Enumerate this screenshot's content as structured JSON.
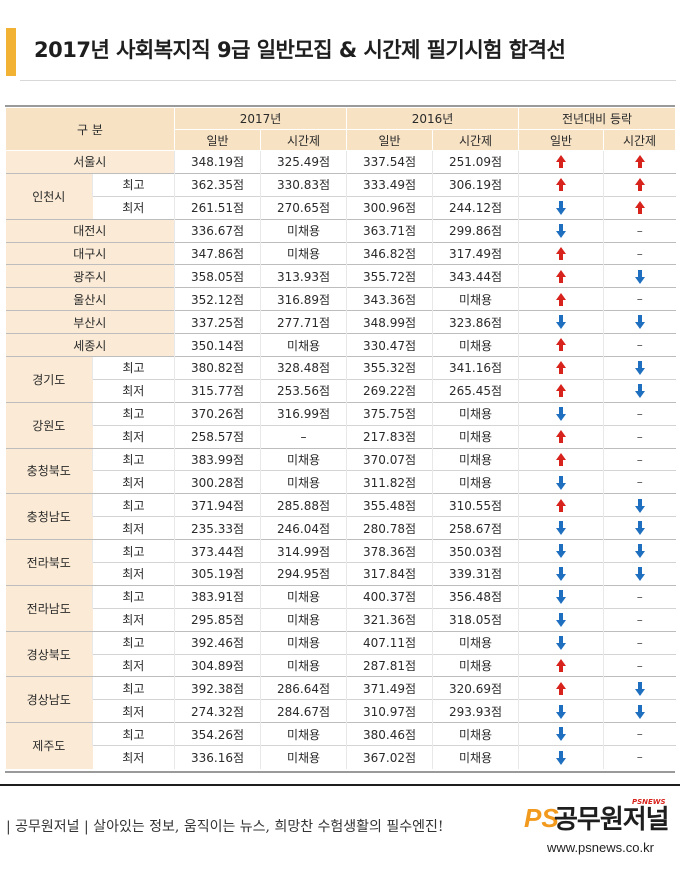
{
  "title": "2017년 사회복지직 9급 일반모집 & 시간제 필기시험 합격선",
  "header": {
    "category": "구 분",
    "year2017": "2017년",
    "year2016": "2016년",
    "change": "전년대비 등락",
    "general": "일반",
    "parttime": "시간제"
  },
  "rows": [
    {
      "region": "서울시",
      "sub": "",
      "g17": "348.19점",
      "p17": "325.49점",
      "g16": "337.54점",
      "p16": "251.09점",
      "cg": "up",
      "cp": "up"
    },
    {
      "region": "인천시",
      "sub": "최고",
      "g17": "362.35점",
      "p17": "330.83점",
      "g16": "333.49점",
      "p16": "306.19점",
      "cg": "up",
      "cp": "up"
    },
    {
      "region": "",
      "sub": "최저",
      "g17": "261.51점",
      "p17": "270.65점",
      "g16": "300.96점",
      "p16": "244.12점",
      "cg": "down",
      "cp": "up"
    },
    {
      "region": "대전시",
      "sub": "",
      "g17": "336.67점",
      "p17": "미채용",
      "g16": "363.71점",
      "p16": "299.86점",
      "cg": "down",
      "cp": "–"
    },
    {
      "region": "대구시",
      "sub": "",
      "g17": "347.86점",
      "p17": "미채용",
      "g16": "346.82점",
      "p16": "317.49점",
      "cg": "up",
      "cp": "–"
    },
    {
      "region": "광주시",
      "sub": "",
      "g17": "358.05점",
      "p17": "313.93점",
      "g16": "355.72점",
      "p16": "343.44점",
      "cg": "up",
      "cp": "down"
    },
    {
      "region": "울산시",
      "sub": "",
      "g17": "352.12점",
      "p17": "316.89점",
      "g16": "343.36점",
      "p16": "미채용",
      "cg": "up",
      "cp": "–"
    },
    {
      "region": "부산시",
      "sub": "",
      "g17": "337.25점",
      "p17": "277.71점",
      "g16": "348.99점",
      "p16": "323.86점",
      "cg": "down",
      "cp": "down"
    },
    {
      "region": "세종시",
      "sub": "",
      "g17": "350.14점",
      "p17": "미채용",
      "g16": "330.47점",
      "p16": "미채용",
      "cg": "up",
      "cp": "–"
    },
    {
      "region": "경기도",
      "sub": "최고",
      "g17": "380.82점",
      "p17": "328.48점",
      "g16": "355.32점",
      "p16": "341.16점",
      "cg": "up",
      "cp": "down"
    },
    {
      "region": "",
      "sub": "최저",
      "g17": "315.77점",
      "p17": "253.56점",
      "g16": "269.22점",
      "p16": "265.45점",
      "cg": "up",
      "cp": "down"
    },
    {
      "region": "강원도",
      "sub": "최고",
      "g17": "370.26점",
      "p17": "316.99점",
      "g16": "375.75점",
      "p16": "미채용",
      "cg": "down",
      "cp": "–"
    },
    {
      "region": "",
      "sub": "최저",
      "g17": "258.57점",
      "p17": "–",
      "g16": "217.83점",
      "p16": "미채용",
      "cg": "up",
      "cp": "–"
    },
    {
      "region": "충청북도",
      "sub": "최고",
      "g17": "383.99점",
      "p17": "미채용",
      "g16": "370.07점",
      "p16": "미채용",
      "cg": "up",
      "cp": "–"
    },
    {
      "region": "",
      "sub": "최저",
      "g17": "300.28점",
      "p17": "미채용",
      "g16": "311.82점",
      "p16": "미채용",
      "cg": "down",
      "cp": "–"
    },
    {
      "region": "충청남도",
      "sub": "최고",
      "g17": "371.94점",
      "p17": "285.88점",
      "g16": "355.48점",
      "p16": "310.55점",
      "cg": "up",
      "cp": "down"
    },
    {
      "region": "",
      "sub": "최저",
      "g17": "235.33점",
      "p17": "246.04점",
      "g16": "280.78점",
      "p16": "258.67점",
      "cg": "down",
      "cp": "down"
    },
    {
      "region": "전라북도",
      "sub": "최고",
      "g17": "373.44점",
      "p17": "314.99점",
      "g16": "378.36점",
      "p16": "350.03점",
      "cg": "down",
      "cp": "down"
    },
    {
      "region": "",
      "sub": "최저",
      "g17": "305.19점",
      "p17": "294.95점",
      "g16": "317.84점",
      "p16": "339.31점",
      "cg": "down",
      "cp": "down"
    },
    {
      "region": "전라남도",
      "sub": "최고",
      "g17": "383.91점",
      "p17": "미채용",
      "g16": "400.37점",
      "p16": "356.48점",
      "cg": "down",
      "cp": "–"
    },
    {
      "region": "",
      "sub": "최저",
      "g17": "295.85점",
      "p17": "미채용",
      "g16": "321.36점",
      "p16": "318.05점",
      "cg": "down",
      "cp": "–"
    },
    {
      "region": "경상북도",
      "sub": "최고",
      "g17": "392.46점",
      "p17": "미채용",
      "g16": "407.11점",
      "p16": "미채용",
      "cg": "down",
      "cp": "–"
    },
    {
      "region": "",
      "sub": "최저",
      "g17": "304.89점",
      "p17": "미채용",
      "g16": "287.81점",
      "p16": "미채용",
      "cg": "up",
      "cp": "–"
    },
    {
      "region": "경상남도",
      "sub": "최고",
      "g17": "392.38점",
      "p17": "286.64점",
      "g16": "371.49점",
      "p16": "320.69점",
      "cg": "up",
      "cp": "down"
    },
    {
      "region": "",
      "sub": "최저",
      "g17": "274.32점",
      "p17": "284.67점",
      "g16": "310.97점",
      "p16": "293.93점",
      "cg": "down",
      "cp": "down"
    },
    {
      "region": "제주도",
      "sub": "최고",
      "g17": "354.26점",
      "p17": "미채용",
      "g16": "380.46점",
      "p16": "미채용",
      "cg": "down",
      "cp": "–"
    },
    {
      "region": "",
      "sub": "최저",
      "g17": "336.16점",
      "p17": "미채용",
      "g16": "367.02점",
      "p16": "미채용",
      "cg": "down",
      "cp": "–"
    }
  ],
  "footer": {
    "slogan": "| 공무원저널 | 살아있는 정보, 움직이는 뉴스, 희망찬 수험생활의 필수엔진!",
    "logo_ps": "PS",
    "logo_name": "공무원저널",
    "logo_tag": "PSNEWS",
    "url": "www.psnews.co.kr"
  },
  "colors": {
    "accent": "#f2b233",
    "header_bg": "#f7e2c4",
    "up": "#d8231c",
    "down": "#1f6fc0"
  }
}
